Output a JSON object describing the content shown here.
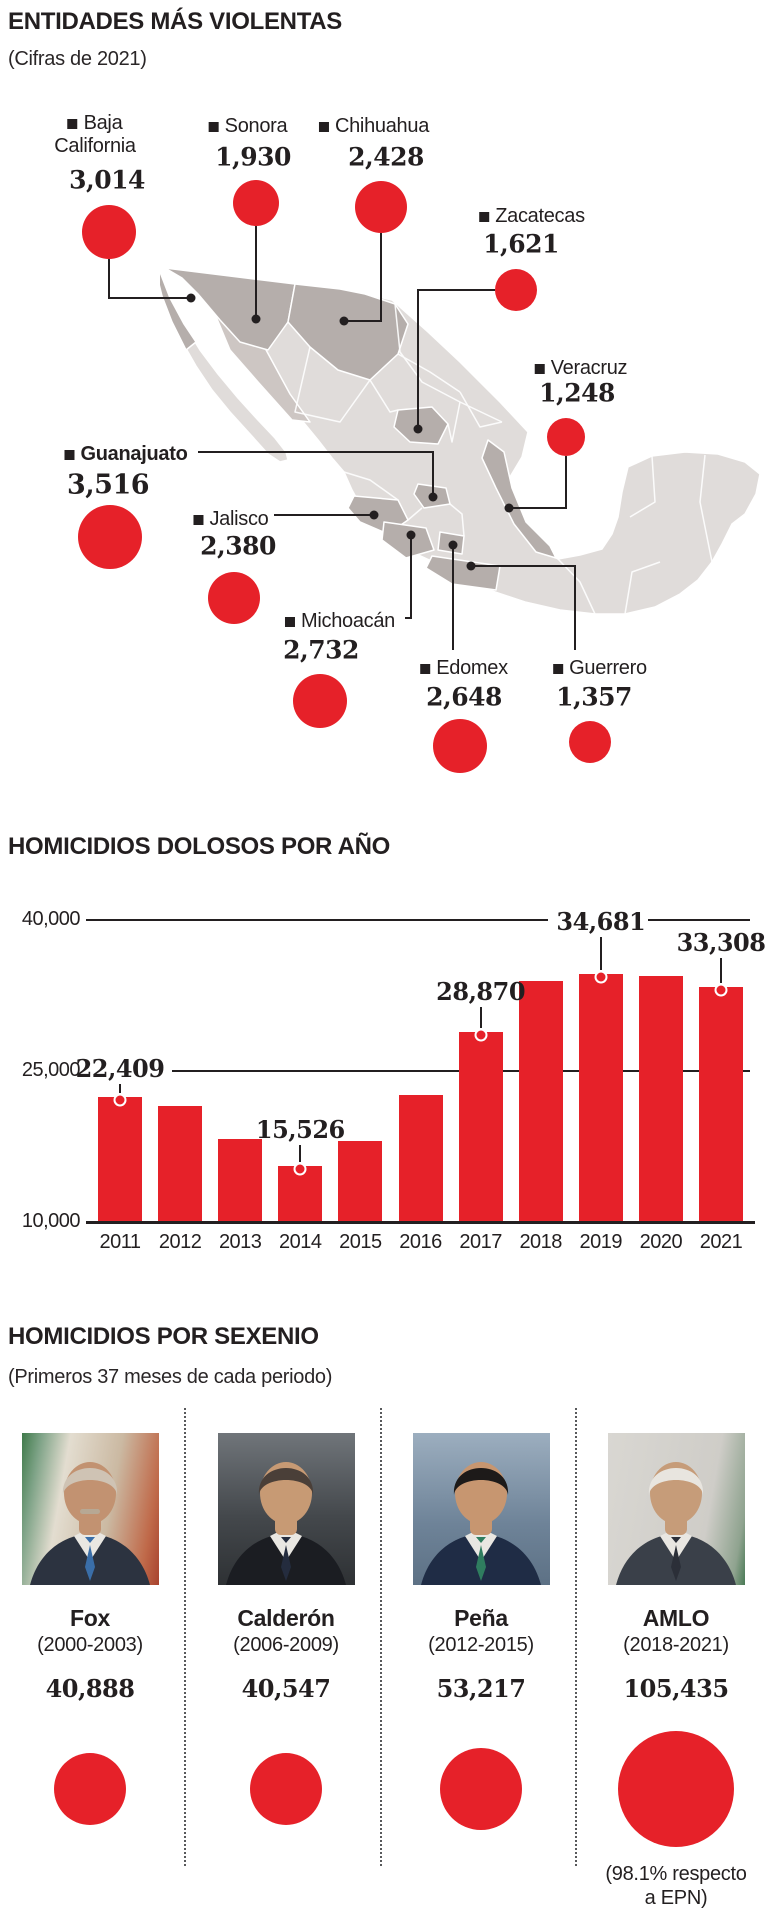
{
  "colors": {
    "accent_red": "#e62129",
    "ink": "#231f20",
    "state_light": "#e0dcda",
    "state_mid": "#cdc6c3",
    "state_dark": "#b5aeab"
  },
  "chart_data": [
    {
      "type": "scatter",
      "subtype": "bubble-map",
      "title": "ENTIDADES MÁS VIOLENTAS",
      "subtitle": "(Cifras de 2021)",
      "units": "homicidios dolosos 2021",
      "points": [
        {
          "id": "baja_california",
          "name": "Baja California",
          "label_lines": [
            "Baja",
            "California"
          ],
          "value": 3014,
          "display": "3,014",
          "bold": false
        },
        {
          "id": "sonora",
          "name": "Sonora",
          "label_lines": [
            "Sonora"
          ],
          "value": 1930,
          "display": "1,930",
          "bold": false
        },
        {
          "id": "chihuahua",
          "name": "Chihuahua",
          "label_lines": [
            "Chihuahua"
          ],
          "value": 2428,
          "display": "2,428",
          "bold": false
        },
        {
          "id": "zacatecas",
          "name": "Zacatecas",
          "label_lines": [
            "Zacatecas"
          ],
          "value": 1621,
          "display": "1,621",
          "bold": false
        },
        {
          "id": "veracruz",
          "name": "Veracruz",
          "label_lines": [
            "Veracruz"
          ],
          "value": 1248,
          "display": "1,248",
          "bold": false
        },
        {
          "id": "guanajuato",
          "name": "Guanajuato",
          "label_lines": [
            "Guanajuato"
          ],
          "value": 3516,
          "display": "3,516",
          "bold": true
        },
        {
          "id": "jalisco",
          "name": "Jalisco",
          "label_lines": [
            "Jalisco"
          ],
          "value": 2380,
          "display": "2,380",
          "bold": false
        },
        {
          "id": "michoacan",
          "name": "Michoacán",
          "label_lines": [
            "Michoacán"
          ],
          "value": 2732,
          "display": "2,732",
          "bold": false
        },
        {
          "id": "edomex",
          "name": "Edomex",
          "label_lines": [
            "Edomex"
          ],
          "value": 2648,
          "display": "2,648",
          "bold": false
        },
        {
          "id": "guerrero",
          "name": "Guerrero",
          "label_lines": [
            "Guerrero"
          ],
          "value": 1357,
          "display": "1,357",
          "bold": false
        }
      ]
    },
    {
      "type": "bar",
      "title": "HOMICIDIOS DOLOSOS POR AÑO",
      "categories": [
        "2011",
        "2012",
        "2013",
        "2014",
        "2015",
        "2016",
        "2017",
        "2018",
        "2019",
        "2020",
        "2021"
      ],
      "values": [
        22409,
        21500,
        18200,
        15526,
        18000,
        22600,
        28870,
        33900,
        34681,
        34450,
        33308
      ],
      "data_labels": [
        {
          "category": "2011",
          "index": 0,
          "label": "22,409"
        },
        {
          "category": "2014",
          "index": 3,
          "label": "15,526"
        },
        {
          "category": "2017",
          "index": 6,
          "label": "28,870"
        },
        {
          "category": "2019",
          "index": 8,
          "label": "34,681"
        },
        {
          "category": "2021",
          "index": 10,
          "label": "33,308"
        }
      ],
      "ylim": [
        10000,
        40000
      ],
      "yticks": [
        {
          "value": 10000,
          "label": "10,000"
        },
        {
          "value": 25000,
          "label": "25,000"
        },
        {
          "value": 40000,
          "label": "40,000"
        }
      ],
      "grid": true,
      "legend": "none",
      "bar_color": "#e62129"
    },
    {
      "type": "scatter",
      "subtype": "proportional-circles",
      "title": "HOMICIDIOS POR SEXENIO",
      "subtitle": "(Primeros 37 meses de cada periodo)",
      "presidents": [
        {
          "name": "Fox",
          "period": "(2000-2003)",
          "value": 40888,
          "display": "40,888"
        },
        {
          "name": "Calderón",
          "period": "(2006-2009)",
          "value": 40547,
          "display": "40,547"
        },
        {
          "name": "Peña",
          "period": "(2012-2015)",
          "value": 53217,
          "display": "53,217"
        },
        {
          "name": "AMLO",
          "period": "(2018-2021)",
          "value": 105435,
          "display": "105,435",
          "note_lines": [
            "(98.1% respecto",
            "a EPN)"
          ]
        }
      ]
    }
  ]
}
